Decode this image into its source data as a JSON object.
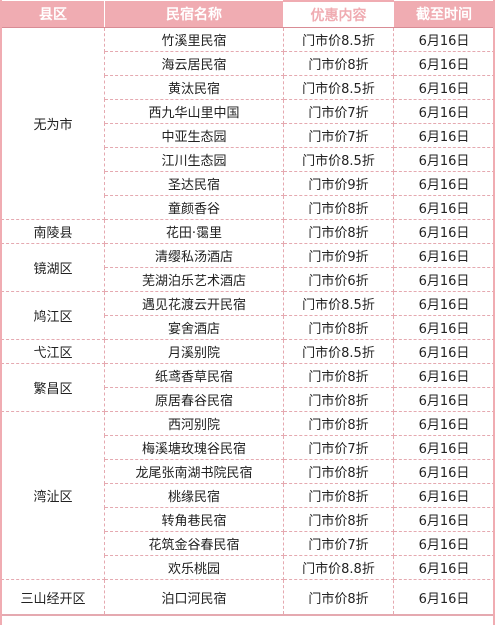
{
  "headers": [
    "县区",
    "民宿名称",
    "优惠内容",
    "截至时间"
  ],
  "groups": [
    {
      "county": "无为市",
      "rows": [
        {
          "name": "竹溪里民宿",
          "discount": "门市价8.5折",
          "date": "6月16日"
        },
        {
          "name": "海云居民宿",
          "discount": "门市价8折",
          "date": "6月16日"
        },
        {
          "name": "黄汰民宿",
          "discount": "门市价8.5折",
          "date": "6月16日"
        },
        {
          "name": "西九华山里中国",
          "discount": "门市价7折",
          "date": "6月16日"
        },
        {
          "name": "中亚生态园",
          "discount": "门市价7折",
          "date": "6月16日"
        },
        {
          "name": "江川生态园",
          "discount": "门市价8.5折",
          "date": "6月16日"
        },
        {
          "name": "圣达民宿",
          "discount": "门市价9折",
          "date": "6月16日"
        },
        {
          "name": "童颜香谷",
          "discount": "门市价8折",
          "date": "6月16日"
        }
      ]
    },
    {
      "county": "南陵县",
      "rows": [
        {
          "name": "花田·霭里",
          "discount": "门市价8折",
          "date": "6月16日"
        }
      ]
    },
    {
      "county": "镜湖区",
      "rows": [
        {
          "name": "清缨私汤酒店",
          "discount": "门市价9折",
          "date": "6月16日"
        },
        {
          "name": "芜湖泊乐艺术酒店",
          "discount": "门市价6折",
          "date": "6月16日"
        }
      ]
    },
    {
      "county": "鸠江区",
      "rows": [
        {
          "name": "遇见花渡云开民宿",
          "discount": "门市价8.5折",
          "date": "6月16日"
        },
        {
          "name": "宴舍酒店",
          "discount": "门市价8折",
          "date": "6月16日"
        }
      ]
    },
    {
      "county": "弋江区",
      "rows": [
        {
          "name": "月溪别院",
          "discount": "门市价8.5折",
          "date": "6月16日"
        }
      ]
    },
    {
      "county": "繁昌区",
      "rows": [
        {
          "name": "纸鸢香草民宿",
          "discount": "门市价8折",
          "date": "6月16日"
        },
        {
          "name": "原居春谷民宿",
          "discount": "门市价8折",
          "date": "6月16日"
        }
      ]
    },
    {
      "county": "湾沚区",
      "rows": [
        {
          "name": "西河别院",
          "discount": "门市价8折",
          "date": "6月16日"
        },
        {
          "name": "梅溪塘玫瑰谷民宿",
          "discount": "门市价7折",
          "date": "6月16日"
        },
        {
          "name": "龙尾张南湖书院民宿",
          "discount": "门市价8折",
          "date": "6月16日"
        },
        {
          "name": "桃缘民宿",
          "discount": "门市价8折",
          "date": "6月16日"
        },
        {
          "name": "转角巷民宿",
          "discount": "门市价8折",
          "date": "6月16日"
        },
        {
          "name": "花筑金谷春民宿",
          "discount": "门市价7折",
          "date": "6月16日"
        },
        {
          "name": "欢乐桃园",
          "discount": "门市价8.8折",
          "date": "6月16日"
        }
      ]
    },
    {
      "county": "三山经开区",
      "rows": [
        {
          "name": "泊口河民宿",
          "discount": "门市价8折",
          "date": "6月16日"
        }
      ]
    }
  ]
}
